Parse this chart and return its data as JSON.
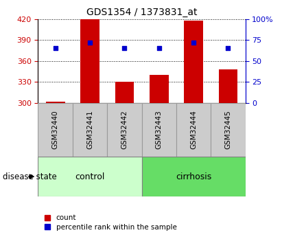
{
  "title": "GDS1354 / 1373831_at",
  "samples": [
    "GSM32440",
    "GSM32441",
    "GSM32442",
    "GSM32443",
    "GSM32444",
    "GSM32445"
  ],
  "bar_base": 300,
  "bar_tops": [
    302,
    420,
    330,
    340,
    418,
    348
  ],
  "percentile_values": [
    65,
    72,
    65,
    65,
    72,
    65
  ],
  "ylim_left": [
    300,
    420
  ],
  "ylim_right": [
    0,
    100
  ],
  "yticks_left": [
    300,
    330,
    360,
    390,
    420
  ],
  "yticks_right": [
    0,
    25,
    50,
    75,
    100
  ],
  "bar_color": "#cc0000",
  "dot_color": "#0000cc",
  "bar_width": 0.55,
  "groups": [
    {
      "label": "control",
      "indices": [
        0,
        1,
        2
      ],
      "color": "#ccffcc"
    },
    {
      "label": "cirrhosis",
      "indices": [
        3,
        4,
        5
      ],
      "color": "#66dd66"
    }
  ],
  "disease_state_label": "disease state",
  "legend_items": [
    {
      "label": "count",
      "color": "#cc0000"
    },
    {
      "label": "percentile rank within the sample",
      "color": "#0000cc"
    }
  ],
  "title_color": "#000000",
  "left_axis_color": "#cc0000",
  "right_axis_color": "#0000cc",
  "sample_box_color": "#cccccc",
  "sample_box_edge": "#999999"
}
